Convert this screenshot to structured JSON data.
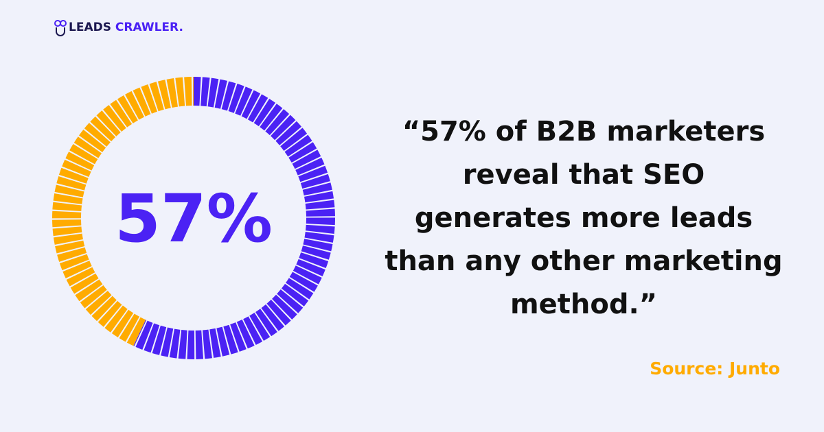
{
  "brand": [
    "LEADS",
    "CRAWLER."
  ],
  "chart_data": {
    "type": "donut",
    "values": [
      57,
      43
    ],
    "value_labels": [
      "57%",
      null
    ],
    "colors": [
      "#4b22f4",
      "#ffab00"
    ]
  },
  "quote_lines": [
    "“57% of B2B marketers",
    "reveal that SEO",
    "generates more leads",
    "than any other marketing",
    "method.”"
  ],
  "source": "Source: Junto"
}
